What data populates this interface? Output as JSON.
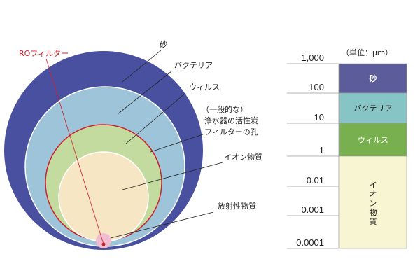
{
  "diagram": {
    "circle_labels": {
      "ro_filter": "ROフィルター",
      "sand": "砂",
      "bacteria": "バクテリア",
      "virus": "ウィルス",
      "carbon_line1": "（一般的な）",
      "carbon_line2": "浄水器の活性炭",
      "carbon_line3": "フィルターの孔",
      "ion": "イオン物質",
      "radioactive": "放射性物質"
    },
    "colors": {
      "sand": "#4a50a0",
      "bacteria": "#9ec4da",
      "virus": "#c4dba0",
      "ion": "#f6e6c4",
      "radioactive": "#f0bcd0",
      "ro_line": "#d0202a"
    }
  },
  "scale": {
    "unit": "（単位：μｍ）",
    "ticks": [
      "1,000",
      "100",
      "10",
      "1",
      "0.01",
      "0.001",
      "0.0001"
    ],
    "bands": [
      {
        "label": "砂",
        "color": "#5b5c99",
        "text_color": "#ffffff"
      },
      {
        "label": "バクテリア",
        "color": "#86c4c6",
        "text_color": "#222222"
      },
      {
        "label": "ウィルス",
        "color": "#79b04f",
        "text_color": "#ffffff"
      },
      {
        "label": "イオン物質",
        "color": "#f8f6d2",
        "text_color": "#222222"
      }
    ]
  }
}
